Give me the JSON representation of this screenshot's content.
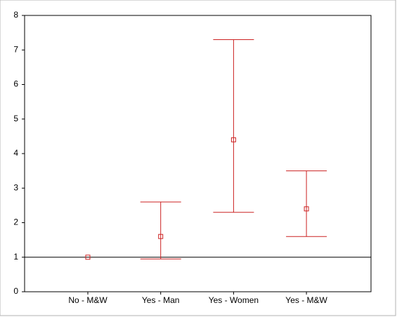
{
  "chart_data": {
    "type": "errorbar",
    "categories": [
      "No - M&W",
      "Yes - Man",
      "Yes - Women",
      "Yes - M&W"
    ],
    "values": [
      1.0,
      1.6,
      4.4,
      2.4
    ],
    "lower": [
      null,
      0.95,
      2.3,
      1.6
    ],
    "upper": [
      null,
      2.6,
      7.3,
      3.5
    ],
    "color": "#cc2222",
    "reference_line": 1,
    "ylim": [
      0,
      8
    ],
    "yticks": [
      0,
      1,
      2,
      3,
      4,
      5,
      6,
      7,
      8
    ]
  }
}
